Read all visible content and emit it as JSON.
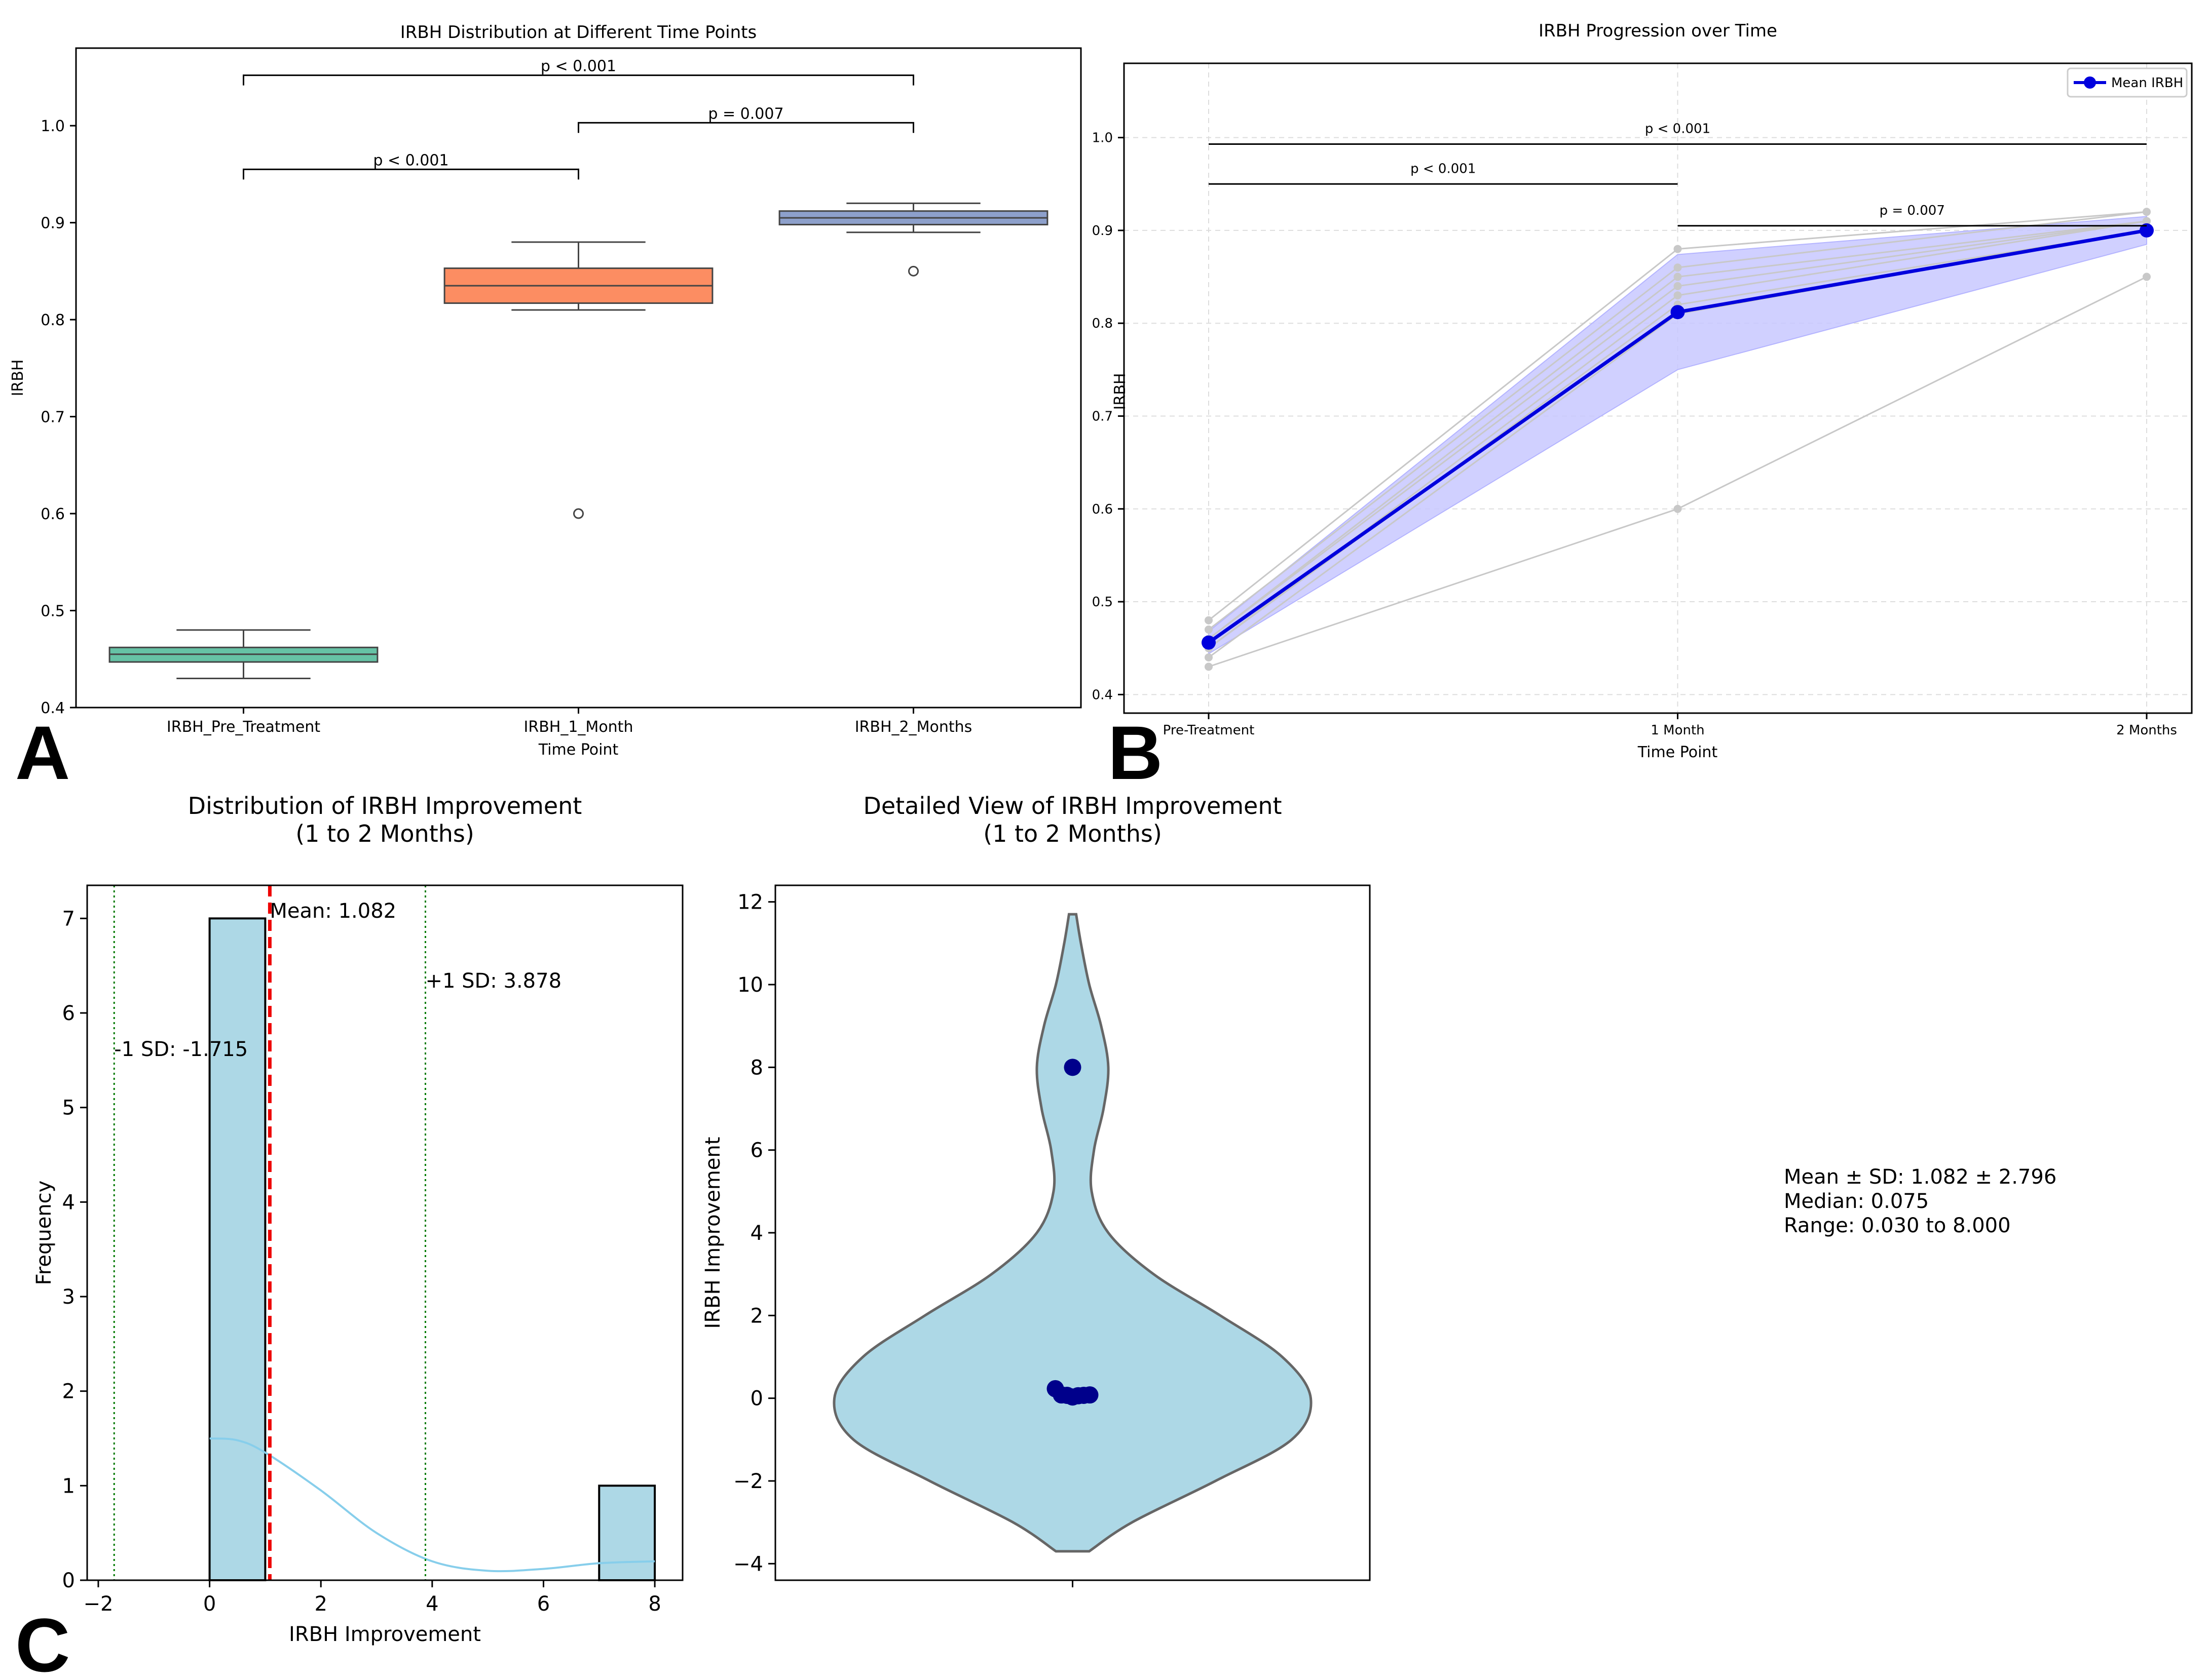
{
  "panel_labels": [
    "A",
    "B",
    "C"
  ],
  "summary": {
    "mean_sd": "Mean ± SD: 1.082 ± 2.796",
    "median": "Median: 0.075",
    "range": "Range: 0.030 to 8.000"
  },
  "colors": {
    "box_pre": "#66c2a5",
    "box_1m": "#fc8d62",
    "box_2m": "#8da0cb",
    "mean_line": "#0000dd",
    "band": "#c8c8ff",
    "individual": "#c8c8c8",
    "hist_bar": "#add8e6",
    "kde": "#87ceeb",
    "mean_marker": "#ee0000",
    "sd_marker": "#007a00",
    "violin": "#add8e6",
    "points": "#00008b"
  },
  "chart_data": [
    {
      "id": "A",
      "type": "box",
      "title": "IRBH Distribution at Different Time Points",
      "xlabel": "Time Point",
      "ylabel": "IRBH",
      "ylim": [
        0.4,
        1.08
      ],
      "yticks": [
        0.4,
        0.5,
        0.6,
        0.7,
        0.8,
        0.9,
        1.0
      ],
      "categories": [
        "IRBH_Pre_Treatment",
        "IRBH_1_Month",
        "IRBH_2_Months"
      ],
      "boxes": [
        {
          "q1": 0.447,
          "median": 0.455,
          "q3": 0.462,
          "whisker_low": 0.43,
          "whisker_high": 0.48,
          "outliers": []
        },
        {
          "q1": 0.817,
          "median": 0.835,
          "q3": 0.853,
          "whisker_low": 0.81,
          "whisker_high": 0.88,
          "outliers": [
            0.6
          ]
        },
        {
          "q1": 0.898,
          "median": 0.905,
          "q3": 0.912,
          "whisker_low": 0.89,
          "whisker_high": 0.92,
          "outliers": [
            0.85
          ]
        }
      ],
      "significance": [
        {
          "from": 0,
          "to": 1,
          "y": 0.955,
          "label": "p < 0.001"
        },
        {
          "from": 1,
          "to": 2,
          "y": 1.003,
          "label": "p = 0.007"
        },
        {
          "from": 0,
          "to": 2,
          "y": 1.052,
          "label": "p < 0.001"
        }
      ]
    },
    {
      "id": "B",
      "type": "line",
      "title": "IRBH Progression over Time",
      "xlabel": "Time Point",
      "ylabel": "IRBH",
      "ylim": [
        0.38,
        1.08
      ],
      "yticks": [
        0.4,
        0.5,
        0.6,
        0.7,
        0.8,
        0.9,
        1.0
      ],
      "categories": [
        "Pre-Treatment",
        "1 Month",
        "2 Months"
      ],
      "series": [
        {
          "name": "Mean IRBH",
          "values": [
            0.456,
            0.812,
            0.9
          ]
        }
      ],
      "band": {
        "lower": [
          0.444,
          0.75,
          0.885
        ],
        "upper": [
          0.468,
          0.874,
          0.915
        ]
      },
      "individuals": [
        [
          0.48,
          0.88,
          0.92
        ],
        [
          0.47,
          0.86,
          0.92
        ],
        [
          0.46,
          0.85,
          0.91
        ],
        [
          0.46,
          0.84,
          0.91
        ],
        [
          0.45,
          0.83,
          0.91
        ],
        [
          0.45,
          0.82,
          0.9
        ],
        [
          0.44,
          0.81,
          0.9
        ],
        [
          0.43,
          0.6,
          0.85
        ]
      ],
      "legend": {
        "label": "Mean IRBH",
        "position": "top-right"
      },
      "significance": [
        {
          "from": 0,
          "to": 1,
          "y": 0.95,
          "label": "p < 0.001"
        },
        {
          "from": 0,
          "to": 2,
          "y": 0.993,
          "label": "p < 0.001"
        },
        {
          "from": 1,
          "to": 2,
          "y": 0.905,
          "label": "p = 0.007"
        }
      ],
      "grid": true
    },
    {
      "id": "C1",
      "type": "histogram",
      "title": "Distribution of IRBH Improvement\n(1 to 2 Months)",
      "xlabel": "IRBH Improvement",
      "ylabel": "Frequency",
      "xlim": [
        -2.2,
        8.5
      ],
      "ylim": [
        0,
        7.35
      ],
      "xticks": [
        -2,
        0,
        2,
        4,
        6,
        8
      ],
      "yticks": [
        0,
        1,
        2,
        3,
        4,
        5,
        6,
        7
      ],
      "bins": [
        {
          "start": 0,
          "end": 1,
          "count": 7
        },
        {
          "start": 7,
          "end": 8,
          "count": 1
        }
      ],
      "kde": [
        [
          0,
          1.5
        ],
        [
          0.5,
          1.48
        ],
        [
          1,
          1.35
        ],
        [
          2,
          0.95
        ],
        [
          3,
          0.5
        ],
        [
          4,
          0.2
        ],
        [
          5,
          0.1
        ],
        [
          6,
          0.12
        ],
        [
          7,
          0.18
        ],
        [
          8,
          0.2
        ]
      ],
      "mean": {
        "value": 1.082,
        "label": "Mean: 1.082"
      },
      "sd_lines": [
        {
          "value": -1.715,
          "label": "-1 SD: -1.715"
        },
        {
          "value": 3.878,
          "label": "+1 SD: 3.878"
        }
      ]
    },
    {
      "id": "C2",
      "type": "violin",
      "title": "Detailed View of IRBH Improvement\n(1 to 2 Months)",
      "ylabel": "IRBH Improvement",
      "ylim": [
        -4.4,
        12.4
      ],
      "yticks": [
        -4,
        -2,
        0,
        2,
        4,
        6,
        8,
        10,
        12
      ],
      "violin": [
        [
          -3.7,
          0.07
        ],
        [
          -3,
          0.25
        ],
        [
          -2,
          0.6
        ],
        [
          -1,
          0.92
        ],
        [
          0,
          1.0
        ],
        [
          1,
          0.88
        ],
        [
          2,
          0.62
        ],
        [
          3,
          0.34
        ],
        [
          4,
          0.15
        ],
        [
          5,
          0.08
        ],
        [
          6,
          0.09
        ],
        [
          7,
          0.13
        ],
        [
          8,
          0.15
        ],
        [
          9,
          0.12
        ],
        [
          10,
          0.07
        ],
        [
          11,
          0.035
        ],
        [
          11.7,
          0.015
        ]
      ],
      "points": [
        {
          "y": 8.0,
          "offset": 0
        },
        {
          "y": 0.23,
          "offset": -0.17
        },
        {
          "y": 0.08,
          "offset": -0.11
        },
        {
          "y": 0.07,
          "offset": -0.055
        },
        {
          "y": 0.03,
          "offset": 0
        },
        {
          "y": 0.06,
          "offset": 0.055
        },
        {
          "y": 0.07,
          "offset": 0.11
        },
        {
          "y": 0.08,
          "offset": 0.17
        }
      ]
    }
  ]
}
